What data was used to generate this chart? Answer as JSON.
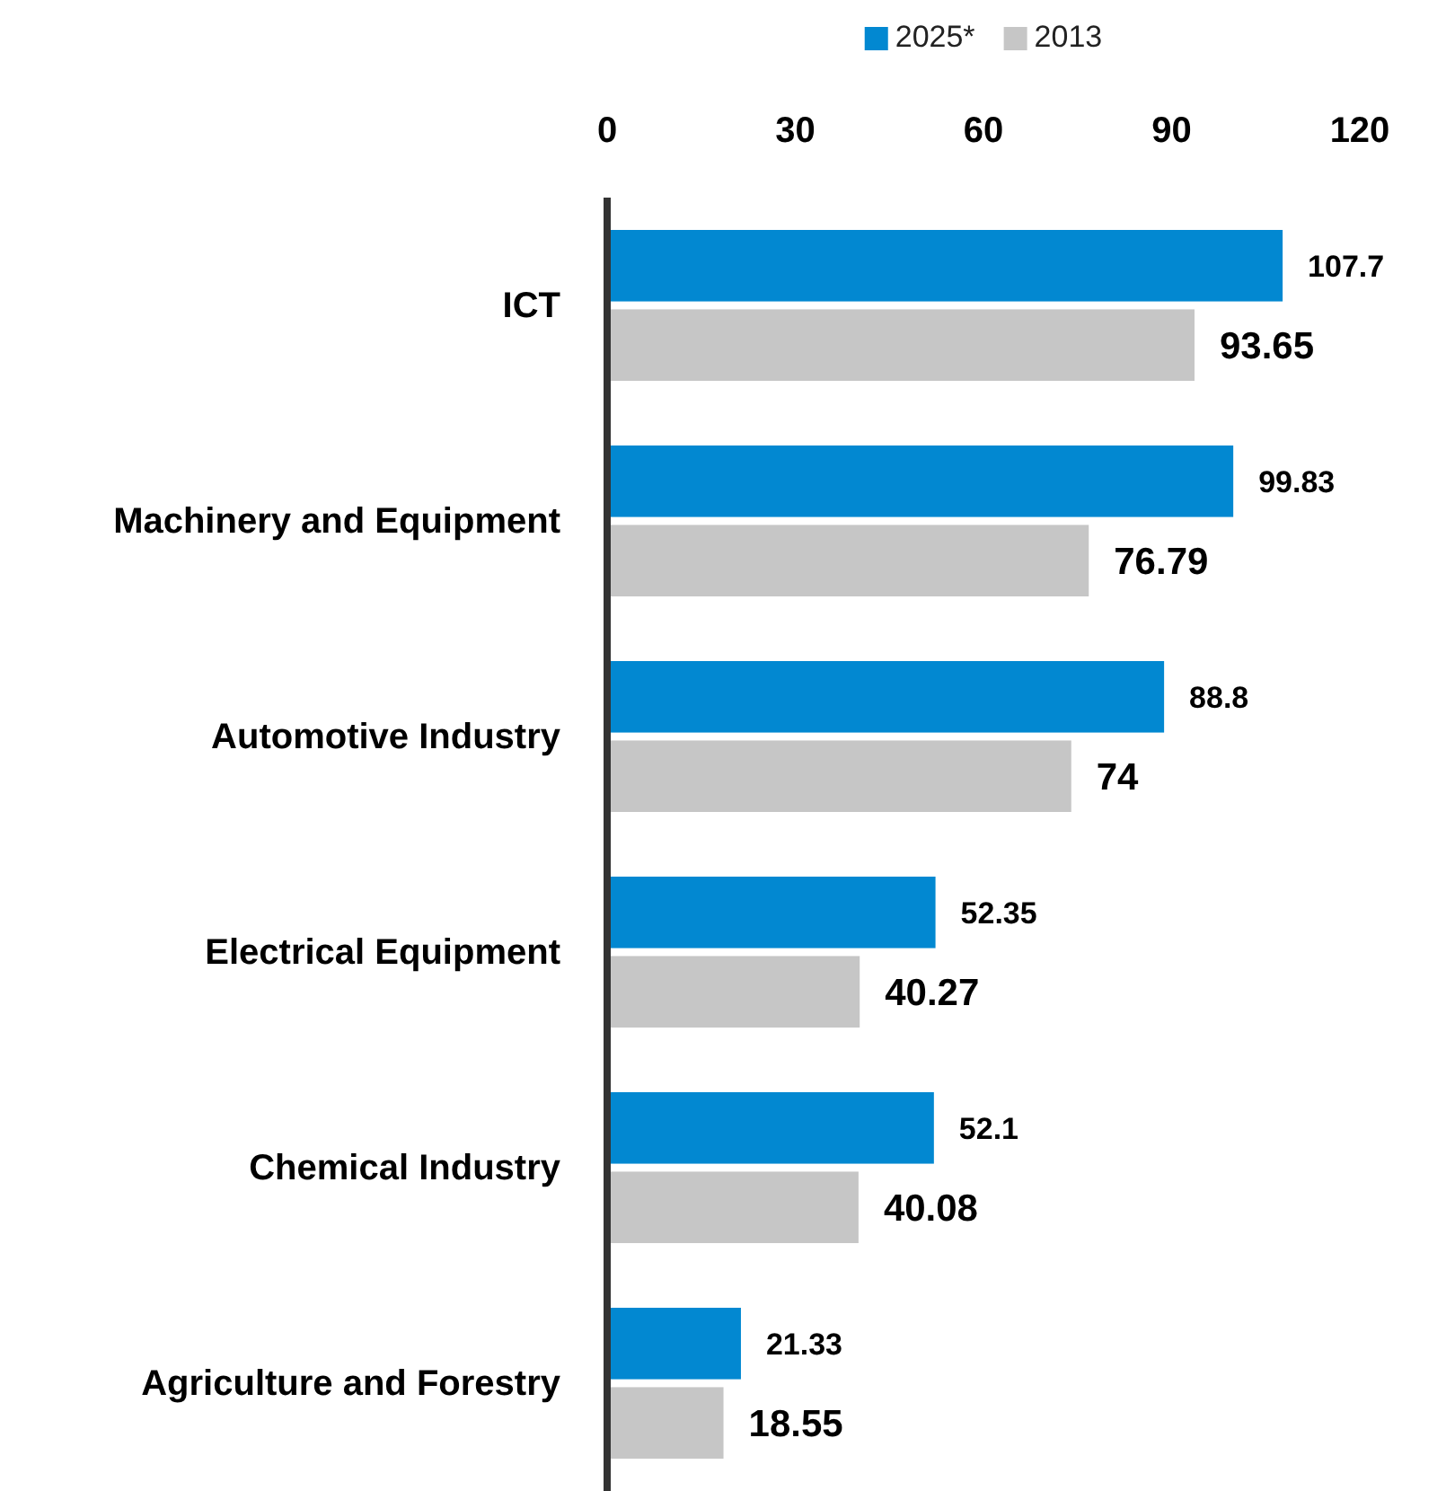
{
  "chart_data": {
    "type": "bar",
    "orientation": "horizontal",
    "categories": [
      "ICT",
      "Machinery and Equipment",
      "Automotive Industry",
      "Electrical Equipment",
      "Chemical Industry",
      "Agriculture and Forestry"
    ],
    "series": [
      {
        "name": "2025*",
        "color": "#0288d1",
        "values": [
          107.7,
          99.83,
          88.8,
          52.35,
          52.1,
          21.33
        ]
      },
      {
        "name": "2013",
        "color": "#c6c6c6",
        "values": [
          93.65,
          76.79,
          74,
          40.27,
          40.08,
          18.55
        ]
      }
    ],
    "xlim": [
      0,
      120
    ],
    "xticks": [
      0,
      30,
      60,
      90,
      120
    ],
    "data_labels": true,
    "legend": "top"
  }
}
